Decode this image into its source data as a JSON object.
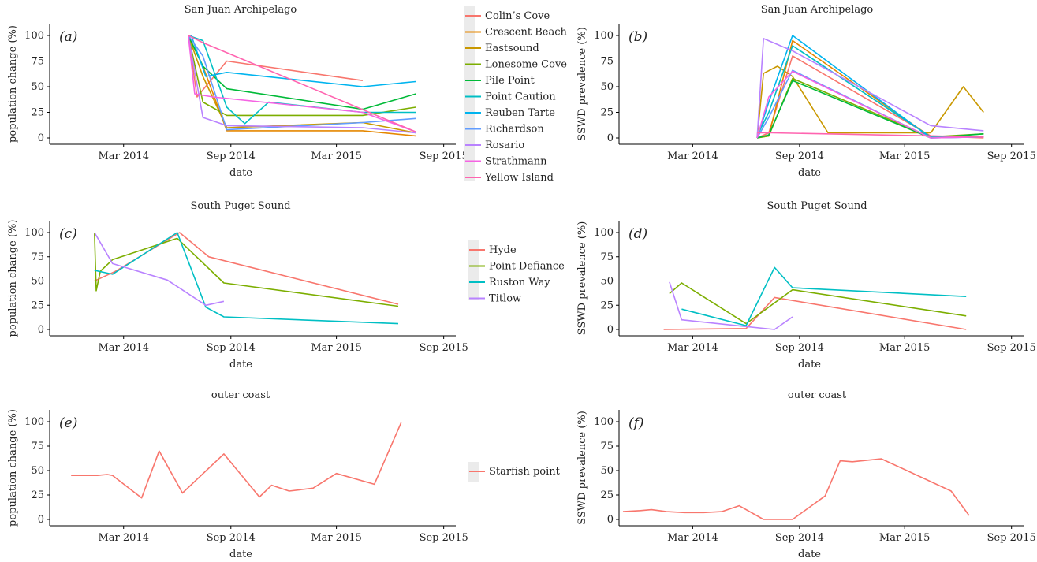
{
  "chart_data": [
    {
      "id": "a",
      "panel_label": "(a)",
      "type": "line",
      "title": "San Juan Archipelago",
      "xlabel": "date",
      "ylabel": "population change (%)",
      "xlim": [
        "2013-11-01",
        "2015-09-15"
      ],
      "ylim": [
        0,
        100
      ],
      "xticks": [
        {
          "date": "2014-03-01",
          "label": "Mar 2014"
        },
        {
          "date": "2014-09-01",
          "label": "Sep 2014"
        },
        {
          "date": "2015-03-01",
          "label": "Mar 2015"
        },
        {
          "date": "2015-09-01",
          "label": "Sep 2015"
        }
      ],
      "yticks": [
        0,
        25,
        50,
        75,
        100
      ],
      "series": [
        {
          "name": "Colin’s Cove",
          "color": "#F8766D",
          "x": [
            "2014-06-20",
            "2014-07-05",
            "2014-08-25",
            "2015-04-15"
          ],
          "y": [
            100,
            40,
            75,
            56
          ]
        },
        {
          "name": "Crescent Beach",
          "color": "#E58700",
          "x": [
            "2014-06-20",
            "2014-07-15",
            "2014-08-25",
            "2015-04-15",
            "2015-07-15"
          ],
          "y": [
            100,
            70,
            7,
            7,
            2
          ]
        },
        {
          "name": "Eastsound",
          "color": "#C99800",
          "x": [
            "2014-06-20",
            "2014-07-15",
            "2014-08-25",
            "2015-04-15",
            "2015-07-15"
          ],
          "y": [
            100,
            60,
            10,
            15,
            5
          ]
        },
        {
          "name": "Lonesome Cove",
          "color": "#7CAE00",
          "x": [
            "2014-06-20",
            "2014-07-15",
            "2014-08-25",
            "2015-04-15",
            "2015-07-15"
          ],
          "y": [
            100,
            35,
            22,
            22,
            30
          ]
        },
        {
          "name": "Pile Point",
          "color": "#00BA38",
          "x": [
            "2014-06-20",
            "2014-07-15",
            "2014-08-25",
            "2015-04-15",
            "2015-07-15"
          ],
          "y": [
            100,
            70,
            48,
            28,
            43
          ]
        },
        {
          "name": "Point Caution",
          "color": "#00BFC4",
          "x": [
            "2014-06-20",
            "2014-07-15",
            "2014-08-25",
            "2014-09-25",
            "2014-11-05",
            "2015-04-15",
            "2015-07-15"
          ],
          "y": [
            100,
            95,
            30,
            14,
            35,
            25,
            25
          ]
        },
        {
          "name": "Reuben Tarte",
          "color": "#00B4EF",
          "x": [
            "2014-06-25",
            "2014-07-20",
            "2014-08-25",
            "2015-04-15",
            "2015-07-15"
          ],
          "y": [
            100,
            60,
            64,
            50,
            55
          ]
        },
        {
          "name": "Richardson",
          "color": "#619CFF",
          "x": [
            "2014-06-20",
            "2014-07-15",
            "2014-08-25",
            "2015-04-15",
            "2015-07-15"
          ],
          "y": [
            100,
            80,
            8,
            15,
            19
          ]
        },
        {
          "name": "Rosario",
          "color": "#B983FF",
          "x": [
            "2014-06-20",
            "2014-07-15",
            "2014-08-25",
            "2015-04-15",
            "2015-07-15"
          ],
          "y": [
            100,
            20,
            12,
            10,
            5
          ]
        },
        {
          "name": "Strathmann",
          "color": "#F564E3",
          "x": [
            "2014-06-20",
            "2014-07-01",
            "2014-08-01",
            "2015-04-15",
            "2015-07-15"
          ],
          "y": [
            100,
            43,
            40,
            25,
            6
          ]
        },
        {
          "name": "Yellow Island",
          "color": "#FF64B0",
          "x": [
            "2014-06-20",
            "2014-07-15",
            "2015-07-15"
          ],
          "y": [
            100,
            93,
            6
          ]
        }
      ]
    },
    {
      "id": "b",
      "panel_label": "(b)",
      "type": "line",
      "title": "San Juan Archipelago",
      "xlabel": "date",
      "ylabel": "SSWD prevalence (%)",
      "xlim": [
        "2013-11-01",
        "2015-09-15"
      ],
      "ylim": [
        0,
        100
      ],
      "xticks": [
        {
          "date": "2014-03-01",
          "label": "Mar 2014"
        },
        {
          "date": "2014-09-01",
          "label": "Sep 2014"
        },
        {
          "date": "2015-03-01",
          "label": "Mar 2015"
        },
        {
          "date": "2015-09-01",
          "label": "Sep 2015"
        }
      ],
      "yticks": [
        0,
        25,
        50,
        75,
        100
      ],
      "series": [
        {
          "name": "Colin’s Cove",
          "color": "#F8766D",
          "x": [
            "2014-06-20",
            "2014-07-10",
            "2014-08-20",
            "2015-04-15",
            "2015-07-15"
          ],
          "y": [
            0,
            5,
            80,
            2,
            0
          ]
        },
        {
          "name": "Crescent Beach",
          "color": "#E58700",
          "x": [
            "2014-06-20",
            "2014-07-10",
            "2014-08-20",
            "2015-04-15",
            "2015-07-15"
          ],
          "y": [
            0,
            2,
            95,
            1,
            1
          ]
        },
        {
          "name": "Eastsound",
          "color": "#C99800",
          "x": [
            "2014-06-20",
            "2014-07-01",
            "2014-07-25",
            "2014-08-20",
            "2014-10-20",
            "2015-04-15",
            "2015-06-10",
            "2015-07-15"
          ],
          "y": [
            0,
            63,
            70,
            60,
            5,
            5,
            50,
            25
          ]
        },
        {
          "name": "Lonesome Cove",
          "color": "#7CAE00",
          "x": [
            "2014-06-20",
            "2014-07-10",
            "2014-08-20",
            "2015-04-15",
            "2015-07-15"
          ],
          "y": [
            0,
            2,
            58,
            1,
            4
          ]
        },
        {
          "name": "Pile Point",
          "color": "#00BA38",
          "x": [
            "2014-06-20",
            "2014-07-10",
            "2014-08-20",
            "2015-04-15",
            "2015-07-15"
          ],
          "y": [
            0,
            3,
            56,
            0,
            4
          ]
        },
        {
          "name": "Point Caution",
          "color": "#00BFC4",
          "x": [
            "2014-06-20",
            "2014-07-10",
            "2014-08-20",
            "2015-04-15",
            "2015-07-15"
          ],
          "y": [
            2,
            25,
            90,
            1,
            1
          ]
        },
        {
          "name": "Reuben Tarte",
          "color": "#00B4EF",
          "x": [
            "2014-06-20",
            "2014-07-10",
            "2014-08-20",
            "2015-04-15",
            "2015-07-15"
          ],
          "y": [
            0,
            35,
            100,
            0,
            1
          ]
        },
        {
          "name": "Richardson",
          "color": "#619CFF",
          "x": [
            "2014-06-20",
            "2014-07-10",
            "2014-08-20",
            "2015-04-15",
            "2015-07-15"
          ],
          "y": [
            0,
            20,
            66,
            0,
            1
          ]
        },
        {
          "name": "Rosario",
          "color": "#B983FF",
          "x": [
            "2014-06-20",
            "2014-07-01",
            "2014-08-20",
            "2015-04-15",
            "2015-07-15"
          ],
          "y": [
            0,
            97,
            85,
            12,
            7
          ]
        },
        {
          "name": "Strathmann",
          "color": "#F564E3",
          "x": [
            "2014-06-20",
            "2014-07-10",
            "2014-08-20",
            "2015-04-15",
            "2015-07-15"
          ],
          "y": [
            0,
            40,
            65,
            0,
            1
          ]
        },
        {
          "name": "Yellow Island",
          "color": "#FF64B0",
          "x": [
            "2014-06-20",
            "2014-07-15",
            "2015-04-15",
            "2015-07-15"
          ],
          "y": [
            5,
            5,
            2,
            1
          ]
        }
      ]
    },
    {
      "id": "c",
      "panel_label": "(c)",
      "type": "line",
      "title": "South Puget Sound",
      "xlabel": "date",
      "ylabel": "population change (%)",
      "xlim": [
        "2013-11-01",
        "2015-09-15"
      ],
      "ylim": [
        0,
        100
      ],
      "xticks": [
        {
          "date": "2014-03-01",
          "label": "Mar 2014"
        },
        {
          "date": "2014-09-01",
          "label": "Sep 2014"
        },
        {
          "date": "2015-03-01",
          "label": "Mar 2015"
        },
        {
          "date": "2015-09-01",
          "label": "Sep 2015"
        }
      ],
      "yticks": [
        0,
        25,
        50,
        75,
        100
      ],
      "series": [
        {
          "name": "Hyde",
          "color": "#F8766D",
          "x": [
            "2014-01-10",
            "2014-02-15",
            "2014-06-05",
            "2014-07-25",
            "2015-06-15"
          ],
          "y": [
            50,
            60,
            100,
            75,
            26
          ]
        },
        {
          "name": "Point Defiance",
          "color": "#7CAE00",
          "x": [
            "2014-01-10",
            "2014-01-13",
            "2014-01-20",
            "2014-02-10",
            "2014-06-01",
            "2014-08-20",
            "2015-06-15"
          ],
          "y": [
            100,
            40,
            60,
            72,
            94,
            48,
            24
          ]
        },
        {
          "name": "Ruston Way",
          "color": "#00BFC4",
          "x": [
            "2014-01-10",
            "2014-02-10",
            "2014-06-01",
            "2014-07-20",
            "2014-08-20",
            "2015-06-15"
          ],
          "y": [
            61,
            57,
            100,
            23,
            13,
            6
          ]
        },
        {
          "name": "Titlow",
          "color": "#B983FF",
          "x": [
            "2014-01-10",
            "2014-02-10",
            "2014-05-15",
            "2014-07-20",
            "2014-08-20"
          ],
          "y": [
            100,
            68,
            51,
            25,
            29
          ]
        }
      ]
    },
    {
      "id": "d",
      "panel_label": "(d)",
      "type": "line",
      "title": "South Puget Sound",
      "xlabel": "date",
      "ylabel": "SSWD prevalence (%)",
      "xlim": [
        "2013-11-01",
        "2015-09-15"
      ],
      "ylim": [
        0,
        100
      ],
      "xticks": [
        {
          "date": "2014-03-01",
          "label": "Mar 2014"
        },
        {
          "date": "2014-09-01",
          "label": "Sep 2014"
        },
        {
          "date": "2015-03-01",
          "label": "Mar 2015"
        },
        {
          "date": "2015-09-01",
          "label": "Sep 2015"
        }
      ],
      "yticks": [
        0,
        25,
        50,
        75,
        100
      ],
      "series": [
        {
          "name": "Hyde",
          "color": "#F8766D",
          "x": [
            "2014-01-10",
            "2014-06-01",
            "2014-07-20",
            "2015-06-15"
          ],
          "y": [
            0,
            1,
            33,
            0
          ]
        },
        {
          "name": "Point Defiance",
          "color": "#7CAE00",
          "x": [
            "2014-01-20",
            "2014-02-10",
            "2014-06-01",
            "2014-08-20",
            "2015-06-15"
          ],
          "y": [
            37,
            48,
            6,
            41,
            14
          ]
        },
        {
          "name": "Ruston Way",
          "color": "#00BFC4",
          "x": [
            "2014-02-10",
            "2014-06-01",
            "2014-07-20",
            "2014-08-20",
            "2015-06-15"
          ],
          "y": [
            21,
            4,
            64,
            43,
            34
          ]
        },
        {
          "name": "Titlow",
          "color": "#B983FF",
          "x": [
            "2014-01-20",
            "2014-02-10",
            "2014-06-01",
            "2014-07-20",
            "2014-08-20"
          ],
          "y": [
            49,
            10,
            3,
            0,
            13
          ]
        }
      ]
    },
    {
      "id": "e",
      "panel_label": "(e)",
      "type": "line",
      "title": "outer coast",
      "xlabel": "date",
      "ylabel": "population change (%)",
      "xlim": [
        "2013-11-01",
        "2015-09-15"
      ],
      "ylim": [
        0,
        100
      ],
      "xticks": [
        {
          "date": "2014-03-01",
          "label": "Mar 2014"
        },
        {
          "date": "2014-09-01",
          "label": "Sep 2014"
        },
        {
          "date": "2015-03-01",
          "label": "Mar 2015"
        },
        {
          "date": "2015-09-01",
          "label": "Sep 2015"
        }
      ],
      "yticks": [
        0,
        25,
        50,
        75,
        100
      ],
      "series": [
        {
          "name": "Starfish point",
          "color": "#F8766D",
          "x": [
            "2013-12-01",
            "2014-01-15",
            "2014-02-01",
            "2014-02-10",
            "2014-04-01",
            "2014-05-01",
            "2014-06-10",
            "2014-08-20",
            "2014-10-20",
            "2014-11-10",
            "2014-12-10",
            "2015-01-20",
            "2015-03-01",
            "2015-05-05",
            "2015-06-20"
          ],
          "y": [
            45,
            45,
            46,
            45,
            22,
            70,
            27,
            67,
            23,
            35,
            29,
            32,
            47,
            36,
            99
          ]
        }
      ]
    },
    {
      "id": "f",
      "panel_label": "(f)",
      "type": "line",
      "title": "outer coast",
      "xlabel": "date",
      "ylabel": "SSWD prevalence (%)",
      "xlim": [
        "2013-11-01",
        "2015-09-15"
      ],
      "ylim": [
        0,
        100
      ],
      "xticks": [
        {
          "date": "2014-03-01",
          "label": "Mar 2014"
        },
        {
          "date": "2014-09-01",
          "label": "Sep 2014"
        },
        {
          "date": "2015-03-01",
          "label": "Mar 2015"
        },
        {
          "date": "2015-09-01",
          "label": "Sep 2015"
        }
      ],
      "yticks": [
        0,
        25,
        50,
        75,
        100
      ],
      "series": [
        {
          "name": "Starfish point",
          "color": "#F8766D",
          "x": [
            "2013-11-01",
            "2013-12-01",
            "2013-12-20",
            "2014-01-15",
            "2014-02-15",
            "2014-03-20",
            "2014-04-20",
            "2014-05-20",
            "2014-07-01",
            "2014-08-20",
            "2014-10-15",
            "2014-11-10",
            "2014-12-01",
            "2015-01-20",
            "2015-05-20",
            "2015-06-20"
          ],
          "y": [
            8,
            9,
            10,
            8,
            7,
            7,
            8,
            14,
            0,
            0,
            24,
            60,
            59,
            62,
            29,
            4
          ]
        }
      ]
    }
  ],
  "legends": [
    {
      "panels": [
        "a",
        "b"
      ],
      "entries": [
        "Colin’s Cove",
        "Crescent Beach",
        "Eastsound",
        "Lonesome Cove",
        "Pile Point",
        "Point Caution",
        "Reuben Tarte",
        "Richardson",
        "Rosario",
        "Strathmann",
        "Yellow Island"
      ],
      "colors": [
        "#F8766D",
        "#E58700",
        "#C99800",
        "#7CAE00",
        "#00BA38",
        "#00BFC4",
        "#00B4EF",
        "#619CFF",
        "#B983FF",
        "#F564E3",
        "#FF64B0"
      ]
    },
    {
      "panels": [
        "c",
        "d"
      ],
      "entries": [
        "Hyde",
        "Point Defiance",
        "Ruston Way",
        "Titlow"
      ],
      "colors": [
        "#F8766D",
        "#7CAE00",
        "#00BFC4",
        "#B983FF"
      ]
    },
    {
      "panels": [
        "e",
        "f"
      ],
      "entries": [
        "Starfish point"
      ],
      "colors": [
        "#F8766D"
      ]
    }
  ]
}
